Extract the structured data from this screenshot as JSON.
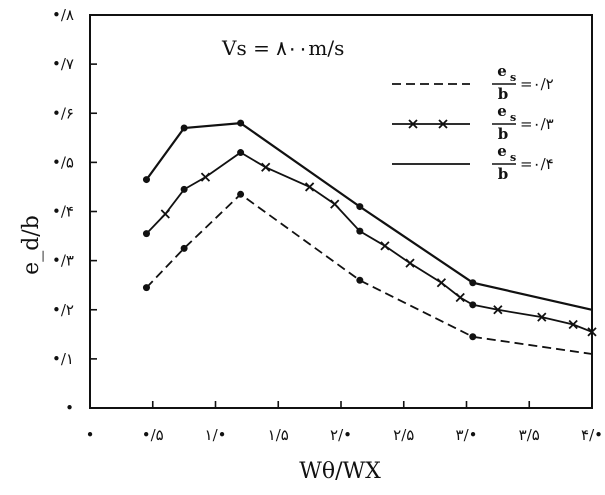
{
  "chart_data": {
    "type": "line",
    "xlabel": "Wθ/WX",
    "ylabel": "e_d/b",
    "annotation": "Vs = ۸۰۰m/s",
    "xlim": [
      0,
      4.0
    ],
    "ylim": [
      0,
      0.8
    ],
    "x_ticks": [
      {
        "v": 0.0,
        "label": "•"
      },
      {
        "v": 0.5,
        "label": "•/۵"
      },
      {
        "v": 1.0,
        "label": "۱/•"
      },
      {
        "v": 1.5,
        "label": "۱/۵"
      },
      {
        "v": 2.0,
        "label": "۲/•"
      },
      {
        "v": 2.5,
        "label": "۲/۵"
      },
      {
        "v": 3.0,
        "label": "۳/•"
      },
      {
        "v": 3.5,
        "label": "۳/۵"
      },
      {
        "v": 4.0,
        "label": "۴/•"
      }
    ],
    "y_ticks": [
      {
        "v": 0.0,
        "label": "•"
      },
      {
        "v": 0.1,
        "label": "•/۱"
      },
      {
        "v": 0.2,
        "label": "•/۲"
      },
      {
        "v": 0.3,
        "label": "•/۳"
      },
      {
        "v": 0.4,
        "label": "•/۴"
      },
      {
        "v": 0.5,
        "label": "•/۵"
      },
      {
        "v": 0.6,
        "label": "•/۶"
      },
      {
        "v": 0.7,
        "label": "•/۷"
      },
      {
        "v": 0.8,
        "label": "•/۸"
      }
    ],
    "series": [
      {
        "key": "es_02",
        "style": "dashed",
        "legend_num": "e",
        "legend_sub": "s",
        "legend_den": "b",
        "legend_value": "=۰/۲",
        "x": [
          0.45,
          0.75,
          1.2,
          2.15,
          3.05,
          4.0
        ],
        "y": [
          0.245,
          0.325,
          0.435,
          0.26,
          0.145,
          0.11
        ],
        "markers": [
          0.45,
          0.75,
          1.2,
          2.15,
          3.05
        ]
      },
      {
        "key": "es_03",
        "style": "cross",
        "legend_num": "e",
        "legend_sub": "s",
        "legend_den": "b",
        "legend_value": "=۰/۳",
        "x": [
          0.45,
          0.6,
          0.75,
          0.92,
          1.2,
          1.4,
          1.75,
          1.95,
          2.15,
          2.35,
          2.55,
          2.8,
          2.95,
          3.05,
          3.25,
          3.6,
          3.85,
          4.0
        ],
        "y": [
          0.355,
          0.395,
          0.445,
          0.47,
          0.52,
          0.49,
          0.45,
          0.415,
          0.36,
          0.33,
          0.295,
          0.255,
          0.225,
          0.21,
          0.2,
          0.185,
          0.17,
          0.155
        ],
        "markers": [
          0.45,
          0.75,
          1.2,
          2.15,
          3.05
        ]
      },
      {
        "key": "es_04",
        "style": "solid",
        "legend_num": "e",
        "legend_sub": "s",
        "legend_den": "b",
        "legend_value": "=۰/۴",
        "x": [
          0.45,
          0.75,
          1.2,
          2.15,
          3.05,
          4.0
        ],
        "y": [
          0.465,
          0.57,
          0.58,
          0.41,
          0.255,
          0.2
        ],
        "markers": [
          0.45,
          0.75,
          1.2,
          2.15,
          3.05
        ]
      }
    ]
  }
}
